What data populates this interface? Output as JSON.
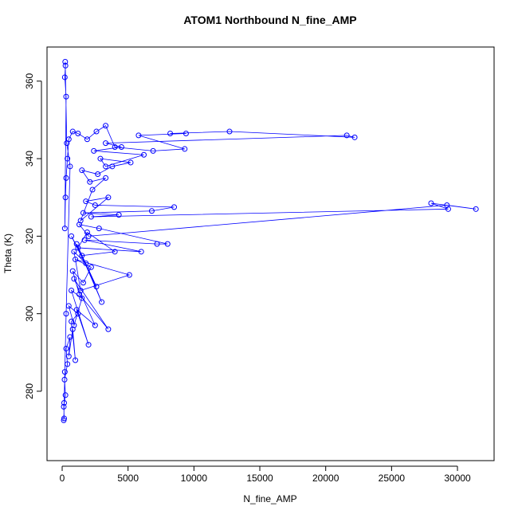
{
  "chart_data": {
    "type": "line",
    "title": "ATOM1 Northbound N_fine_AMP",
    "x_label": "N_fine_AMP",
    "y_label": "Theta (K)",
    "series": [
      {
        "color": "#0000ff",
        "x": [
          150,
          120,
          250,
          180,
          400,
          300,
          600,
          500,
          800,
          1000,
          700,
          1200,
          500,
          900,
          1500,
          700,
          2000,
          1100,
          2500,
          900,
          3500,
          1300,
          800,
          1600,
          2200,
          1000,
          5100,
          1400,
          900,
          1800,
          3000,
          1100,
          2600,
          700,
          1500,
          4000,
          1900,
          1200,
          6000,
          1700,
          7200,
          8000,
          2800,
          1300,
          2000,
          29200,
          31400,
          28000,
          29300,
          2200,
          4300,
          1600,
          6800,
          8500,
          2500,
          1800,
          3500,
          1400,
          2300,
          3300,
          2100,
          1500,
          2700,
          3800,
          5200,
          2900,
          3300,
          6200,
          2400,
          4500,
          3300,
          21600,
          22200,
          12700,
          8200,
          9400,
          5800,
          9300,
          6900,
          4000,
          3300,
          2600,
          1900,
          1200,
          800,
          500,
          400,
          300,
          250,
          200,
          300,
          200,
          250,
          230,
          350,
          600,
          300,
          200,
          150,
          120
        ],
        "values": [
          273,
          276,
          279,
          283,
          287,
          291,
          294,
          289,
          296,
          288,
          298,
          300,
          302,
          297,
          304,
          306,
          292,
          301,
          297,
          309,
          296,
          305,
          311,
          308,
          312,
          314,
          310,
          306,
          316,
          313,
          303,
          318,
          307,
          320,
          315,
          316,
          321,
          317,
          316,
          319,
          318,
          318,
          322,
          323,
          320,
          328,
          327,
          328.5,
          327,
          325,
          325.5,
          326,
          326.5,
          327.5,
          328,
          329,
          330,
          324,
          332,
          335,
          334,
          337,
          336,
          338,
          339,
          340,
          338,
          341,
          342,
          343,
          344,
          346,
          345.5,
          347,
          346.5,
          346.5,
          346,
          342.5,
          342,
          343,
          348.5,
          347,
          345,
          346.5,
          347,
          345,
          340,
          335,
          330,
          322,
          356,
          361,
          364,
          365,
          344,
          338,
          300,
          285,
          277,
          272.5
        ]
      }
    ],
    "xlim": [
      -1150,
      32780
    ],
    "ylim": [
      262.1,
      368.8
    ],
    "xticks": [
      0,
      5000,
      10000,
      15000,
      20000,
      25000,
      30000
    ],
    "yticks": [
      280,
      300,
      320,
      340,
      360
    ]
  }
}
